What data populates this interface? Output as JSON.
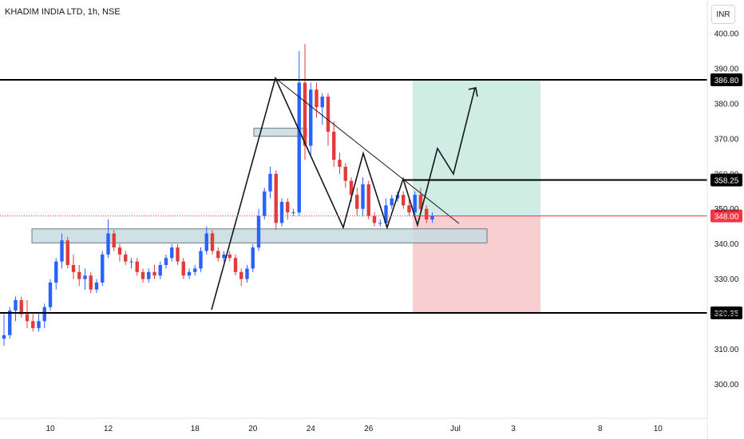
{
  "header": {
    "title": "KHADIM INDIA LTD, 1h, NSE",
    "currency": "INR"
  },
  "chart_data": {
    "type": "candlestick",
    "symbol": "KHADIM INDIA LTD",
    "interval": "1h",
    "exchange": "NSE",
    "currency": "INR",
    "y_ticks": [
      300,
      310,
      320,
      330,
      340,
      350,
      360,
      370,
      380,
      390,
      400
    ],
    "y_tick_labels": [
      "300.00",
      "310.00",
      "320.00",
      "330.00",
      "340.00",
      "350.00",
      "360.00",
      "370.00",
      "380.00",
      "390.00",
      "400.00"
    ],
    "ylim": [
      292,
      405
    ],
    "x_ticks": [
      {
        "label": "10",
        "i": 8
      },
      {
        "label": "12",
        "i": 18
      },
      {
        "label": "18",
        "i": 33
      },
      {
        "label": "20",
        "i": 43
      },
      {
        "label": "24",
        "i": 53
      },
      {
        "label": "26",
        "i": 63
      },
      {
        "label": "Jul",
        "i": 78
      },
      {
        "label": "3",
        "i": 88
      },
      {
        "label": "8",
        "i": 103
      },
      {
        "label": "10",
        "i": 113
      }
    ],
    "candles": [
      [
        313,
        320,
        311,
        314
      ],
      [
        314,
        322,
        313,
        321
      ],
      [
        321,
        325,
        318,
        324
      ],
      [
        324,
        325,
        319,
        320
      ],
      [
        320,
        324,
        316,
        318
      ],
      [
        318,
        320,
        315,
        316
      ],
      [
        316,
        320,
        315,
        318
      ],
      [
        318,
        323,
        316,
        322
      ],
      [
        322,
        330,
        321,
        329
      ],
      [
        329,
        336,
        327,
        335
      ],
      [
        335,
        343,
        333,
        341
      ],
      [
        341,
        342,
        333,
        334
      ],
      [
        334,
        337,
        330,
        332
      ],
      [
        332,
        334,
        328,
        330
      ],
      [
        330,
        333,
        327,
        331
      ],
      [
        331,
        332,
        326,
        327
      ],
      [
        327,
        330,
        326,
        329
      ],
      [
        329,
        338,
        328,
        337
      ],
      [
        337,
        347,
        336,
        343
      ],
      [
        343,
        344,
        338,
        339
      ],
      [
        339,
        340,
        335,
        337
      ],
      [
        337,
        338,
        334,
        335
      ],
      [
        335,
        336,
        333,
        335
      ],
      [
        335,
        336,
        331,
        332
      ],
      [
        332,
        333,
        329,
        330
      ],
      [
        330,
        333,
        329,
        332
      ],
      [
        332,
        334,
        330,
        331
      ],
      [
        331,
        335,
        330,
        334
      ],
      [
        334,
        337,
        333,
        336
      ],
      [
        336,
        340,
        335,
        339
      ],
      [
        339,
        340,
        334,
        335
      ],
      [
        335,
        336,
        330,
        331
      ],
      [
        331,
        333,
        330,
        332
      ],
      [
        332,
        334,
        331,
        333
      ],
      [
        333,
        339,
        332,
        338
      ],
      [
        338,
        345,
        337,
        343
      ],
      [
        343,
        344,
        337,
        338
      ],
      [
        338,
        339,
        335,
        336
      ],
      [
        336,
        338,
        335,
        337
      ],
      [
        337,
        338,
        335,
        336
      ],
      [
        336,
        337,
        331,
        332
      ],
      [
        332,
        333,
        328,
        330
      ],
      [
        330,
        334,
        329,
        333
      ],
      [
        333,
        340,
        332,
        339
      ],
      [
        339,
        350,
        338,
        348
      ],
      [
        348,
        356,
        347,
        355
      ],
      [
        355,
        362,
        353,
        360
      ],
      [
        360,
        361,
        344,
        346
      ],
      [
        346,
        353,
        345,
        352
      ],
      [
        352,
        353,
        347,
        349
      ],
      [
        349,
        350,
        348,
        349
      ],
      [
        349,
        395,
        348,
        386
      ],
      [
        386,
        397,
        364,
        368
      ],
      [
        368,
        386,
        365,
        384
      ],
      [
        384,
        386,
        376,
        379
      ],
      [
        379,
        383,
        374,
        382
      ],
      [
        382,
        383,
        368,
        372
      ],
      [
        372,
        375,
        362,
        364
      ],
      [
        364,
        366,
        360,
        362
      ],
      [
        362,
        363,
        356,
        358
      ],
      [
        358,
        359,
        352,
        354
      ],
      [
        354,
        356,
        348,
        350
      ],
      [
        350,
        359,
        348,
        357
      ],
      [
        357,
        358,
        347,
        348
      ],
      [
        348,
        349,
        345,
        346
      ],
      [
        346,
        347,
        345,
        346
      ],
      [
        346,
        353,
        345,
        351
      ],
      [
        351,
        354,
        350,
        353
      ],
      [
        353,
        355,
        352,
        354
      ],
      [
        354,
        355,
        350,
        351
      ],
      [
        351,
        353,
        348,
        349
      ],
      [
        349,
        355,
        348,
        354
      ],
      [
        354,
        356,
        349,
        350
      ],
      [
        350,
        351,
        346,
        347
      ],
      [
        347,
        349,
        346,
        348
      ]
    ],
    "levels": [
      {
        "price": 386.8,
        "label": "386.80",
        "kind": "resistance"
      },
      {
        "price": 358.25,
        "label": "358.25",
        "kind": "target"
      },
      {
        "price": 348.0,
        "label": "348.00",
        "kind": "current"
      },
      {
        "price": 320.35,
        "label": "320.35",
        "kind": "support"
      }
    ],
    "zones": [
      {
        "name": "demand-zone",
        "from_i": 4,
        "to_i": 151,
        "y_top": 344.3,
        "y_bottom": 340.3
      },
      {
        "name": "supply-zone",
        "from_i": 43,
        "to_i": 47,
        "y_top": 373.0,
        "y_bottom": 370.7
      }
    ],
    "long_position": {
      "entry": 348.0,
      "target": 386.8,
      "stop": 320.35
    },
    "colors": {
      "up": "#2962ff",
      "down": "#e33a3a",
      "accent_current": "#f23645",
      "profit_zone": "#b7e4d4",
      "loss_zone": "#f7b9bc",
      "zone_box": "#c7dce0"
    }
  }
}
